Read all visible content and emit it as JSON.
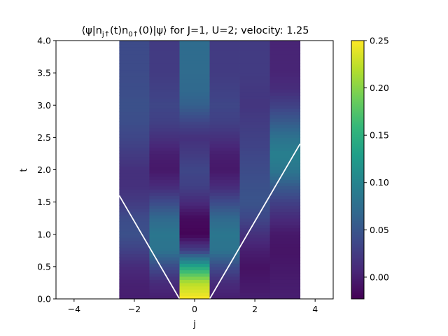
{
  "chart_data": {
    "type": "heatmap",
    "title": "⟨ψ|n_{j↑}(t)n_{0↑}(0)|ψ⟩ for J=1, U=2; velocity: 1.25",
    "title_parts": {
      "expr": "⟨ψ|n",
      "sub1": "j↑",
      "mid": "(t)n",
      "sub2": "0↑",
      "tail": "(0)|ψ⟩ for J=1, U=2; velocity: 1.25"
    },
    "xlabel": "j",
    "ylabel": "t",
    "xlim": [
      -4.6,
      4.6
    ],
    "ylim": [
      0,
      4
    ],
    "grid": false,
    "x_ticks": [
      -4,
      -2,
      0,
      2,
      4
    ],
    "x_tick_labels": [
      "−4",
      "−2",
      "0",
      "2",
      "4"
    ],
    "y_ticks": [
      0,
      0.5,
      1.0,
      1.5,
      2.0,
      2.5,
      3.0,
      3.5,
      4.0
    ],
    "y_tick_labels": [
      "0.0",
      "0.5",
      "1.0",
      "1.5",
      "2.0",
      "2.5",
      "3.0",
      "3.5",
      "4.0"
    ],
    "colormap": "viridis",
    "colorbar": {
      "vmin": -0.023,
      "vmax": 0.25,
      "ticks": [
        0.0,
        0.05,
        0.1,
        0.15,
        0.2,
        0.25
      ],
      "tick_labels": [
        "0.00",
        "0.05",
        "0.10",
        "0.15",
        "0.20",
        "0.25"
      ]
    },
    "j_sites": [
      -2,
      -1,
      0,
      1,
      2,
      3
    ],
    "t_knots": [
      0,
      0.25,
      0.5,
      0.75,
      1.0,
      1.25,
      1.5,
      1.75,
      2.0,
      2.25,
      2.5,
      2.75,
      3.0,
      3.25,
      3.5,
      3.75,
      4.0
    ],
    "values_by_site": [
      [
        0.0,
        0.002,
        0.01,
        0.03,
        0.045,
        0.04,
        0.025,
        0.015,
        0.015,
        0.025,
        0.035,
        0.042,
        0.045,
        0.042,
        0.04,
        0.04,
        0.04
      ],
      [
        0.0,
        0.01,
        0.04,
        0.08,
        0.085,
        0.07,
        0.04,
        0.01,
        -0.005,
        0.0,
        0.015,
        0.03,
        0.035,
        0.03,
        0.025,
        0.025,
        0.025
      ],
      [
        0.25,
        0.22,
        0.14,
        0.03,
        -0.02,
        -0.015,
        0.01,
        0.03,
        0.035,
        0.025,
        0.015,
        0.035,
        0.06,
        0.07,
        0.072,
        0.073,
        0.073
      ],
      [
        0.0,
        0.01,
        0.04,
        0.08,
        0.085,
        0.07,
        0.04,
        0.01,
        -0.005,
        0.0,
        0.015,
        0.03,
        0.035,
        0.03,
        0.025,
        0.025,
        0.025
      ],
      [
        0.0,
        -0.005,
        -0.01,
        0.0,
        0.015,
        0.035,
        0.048,
        0.045,
        0.04,
        0.035,
        0.03,
        0.025,
        0.02,
        0.022,
        0.025,
        0.025,
        0.025
      ],
      [
        0.0,
        -0.002,
        -0.005,
        -0.008,
        -0.005,
        0.01,
        0.03,
        0.055,
        0.085,
        0.095,
        0.08,
        0.055,
        0.03,
        0.012,
        0.005,
        0.005,
        0.005
      ]
    ],
    "light_cone": {
      "color": "#ffffff",
      "velocity": 1.25,
      "left": {
        "x": [
          -0.5,
          -2.5
        ],
        "y": [
          0,
          1.6
        ]
      },
      "right": {
        "x": [
          0.5,
          3.5
        ],
        "y": [
          0,
          2.4
        ]
      }
    }
  }
}
